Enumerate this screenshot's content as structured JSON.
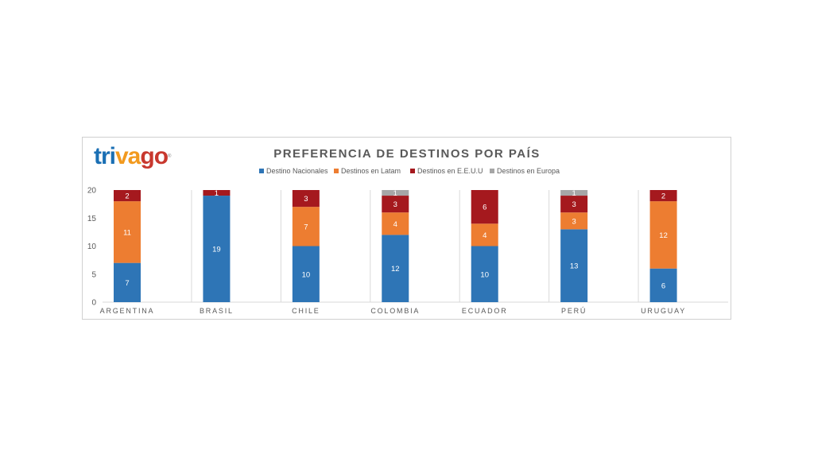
{
  "logo": {
    "part1": "tri",
    "part2": "va",
    "part3": "go",
    "mark": "®",
    "colors": [
      "#1a6fb4",
      "#f29a1f",
      "#c8382e"
    ]
  },
  "chart_data": {
    "type": "bar",
    "stacked": true,
    "title": "PREFERENCIA  DE DESTINOS POR PAÍS",
    "categories": [
      "ARGENTINA",
      "BRASIL",
      "CHILE",
      "COLOMBIA",
      "ECUADOR",
      "PERÚ",
      "URUGUAY"
    ],
    "series": [
      {
        "name": "Destino Nacionales",
        "color": "#2e75b6",
        "values": [
          7,
          19,
          10,
          12,
          10,
          13,
          6
        ]
      },
      {
        "name": "Destinos en Latam",
        "color": "#ed7d31",
        "values": [
          11,
          0,
          7,
          4,
          4,
          3,
          12
        ]
      },
      {
        "name": "Destinos en E.E.U.U",
        "color": "#a5191e",
        "values": [
          2,
          1,
          3,
          3,
          6,
          3,
          2
        ]
      },
      {
        "name": "Destinos en Europa",
        "color": "#a6a6a6",
        "values": [
          0,
          0,
          0,
          1,
          0,
          1,
          0
        ]
      }
    ],
    "ylim": [
      0,
      20
    ],
    "yticks": [
      0,
      5,
      10,
      15,
      20
    ],
    "legend_position": "top",
    "grid": false,
    "data_labels": true
  }
}
